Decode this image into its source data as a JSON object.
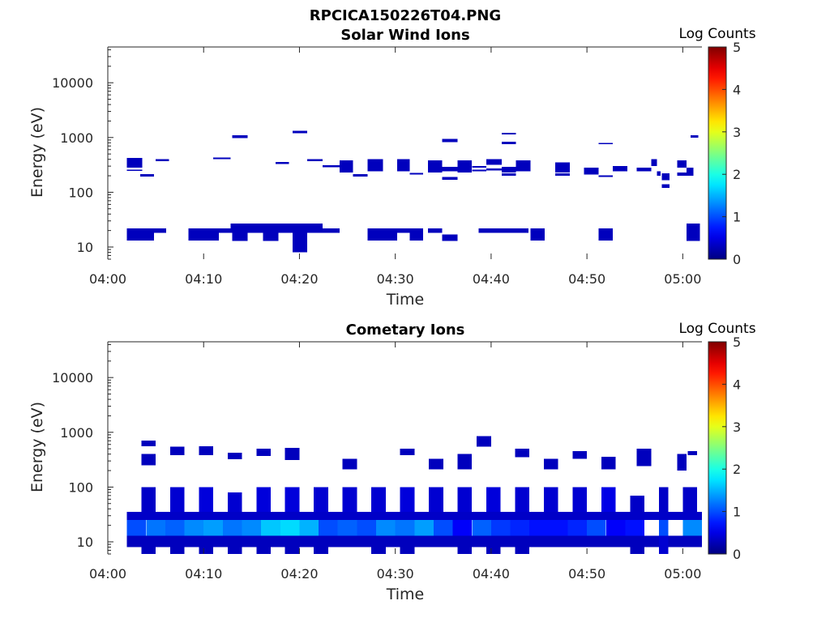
{
  "figure_title": "RPCICA150226T04.PNG",
  "colorbar": {
    "label": "Log Counts",
    "ticks": [
      "0",
      "1",
      "2",
      "3",
      "4",
      "5"
    ],
    "range": [
      0,
      5
    ],
    "colormap": "jet"
  },
  "chart_data": [
    {
      "type": "heatmap",
      "title": "Solar Wind Ions",
      "xlabel": "Time",
      "ylabel": "Energy (eV)",
      "x_ticks": [
        "04:00",
        "04:10",
        "04:20",
        "04:30",
        "04:40",
        "04:50",
        "05:00"
      ],
      "y_ticks": [
        "10",
        "100",
        "1000",
        "10000"
      ],
      "y_scale": "log",
      "ylim": [
        6,
        45000
      ],
      "xlim_minutes": [
        0,
        62
      ],
      "value_units": "log counts",
      "cells": [
        [
          2,
          3.6,
          13,
          22,
          0.3
        ],
        [
          2,
          3.6,
          280,
          420,
          0.3
        ],
        [
          2,
          3.6,
          245,
          260,
          0.3
        ],
        [
          3.4,
          4.8,
          13,
          22,
          0.3
        ],
        [
          3.4,
          4.8,
          195,
          215,
          0.3
        ],
        [
          4.8,
          6.1,
          18,
          22,
          0.3
        ],
        [
          5,
          6.4,
          370,
          400,
          0.3
        ],
        [
          8.4,
          11.6,
          13,
          22,
          0.3
        ],
        [
          11.6,
          12.8,
          18,
          22,
          0.3
        ],
        [
          11,
          12.8,
          400,
          430,
          0.3
        ],
        [
          12.8,
          13.6,
          18,
          27,
          0.3
        ],
        [
          13,
          14.6,
          13,
          27,
          0.3
        ],
        [
          13,
          14.6,
          980,
          1100,
          0.3
        ],
        [
          14.6,
          16.2,
          18,
          27,
          0.3
        ],
        [
          16.2,
          17.8,
          13,
          27,
          0.3
        ],
        [
          17.8,
          19.3,
          18,
          27,
          0.3
        ],
        [
          17.5,
          18.9,
          330,
          360,
          0.3
        ],
        [
          19.3,
          20.8,
          8,
          27,
          0.3
        ],
        [
          19.3,
          20.8,
          1200,
          1320,
          0.3
        ],
        [
          20.8,
          22.4,
          18,
          27,
          0.3
        ],
        [
          20.8,
          22.4,
          370,
          400,
          0.3
        ],
        [
          22.4,
          24.2,
          18,
          22,
          0.3
        ],
        [
          22.4,
          24.2,
          285,
          310,
          0.3
        ],
        [
          24.2,
          25.6,
          230,
          380,
          0.3
        ],
        [
          25.6,
          27.1,
          195,
          215,
          0.3
        ],
        [
          27.1,
          28.7,
          240,
          400,
          0.3
        ],
        [
          27.1,
          30.2,
          13,
          22,
          0.3
        ],
        [
          30.2,
          31.5,
          18,
          22,
          0.3
        ],
        [
          30.2,
          31.5,
          240,
          400,
          0.3
        ],
        [
          31.5,
          32.9,
          13,
          22,
          0.3
        ],
        [
          31.5,
          32.9,
          210,
          225,
          0.3
        ],
        [
          33.4,
          34.9,
          18,
          22,
          0.3
        ],
        [
          33.4,
          34.9,
          230,
          380,
          0.3
        ],
        [
          34.9,
          36.5,
          13,
          17,
          0.3
        ],
        [
          34.9,
          36.5,
          830,
          950,
          0.3
        ],
        [
          34.9,
          36.5,
          240,
          290,
          0.3
        ],
        [
          34.9,
          36.5,
          170,
          190,
          0.3
        ],
        [
          36.5,
          38,
          230,
          380,
          0.3
        ],
        [
          38,
          39.5,
          280,
          300,
          0.3
        ],
        [
          38,
          39.5,
          240,
          260,
          0.3
        ],
        [
          38.7,
          43.9,
          18,
          22,
          0.3
        ],
        [
          39.5,
          41.1,
          320,
          400,
          0.3
        ],
        [
          39.5,
          41.1,
          250,
          270,
          0.3
        ],
        [
          41.1,
          42.6,
          230,
          290,
          0.3
        ],
        [
          41.1,
          42.6,
          1130,
          1220,
          0.3
        ],
        [
          41.1,
          42.6,
          750,
          830,
          0.3
        ],
        [
          41.1,
          42.6,
          200,
          220,
          0.3
        ],
        [
          42.6,
          44.1,
          240,
          380,
          0.3
        ],
        [
          44.1,
          45.6,
          13,
          22,
          0.3
        ],
        [
          46.7,
          48.2,
          230,
          350,
          0.3
        ],
        [
          46.7,
          48.2,
          200,
          220,
          0.3
        ],
        [
          49.7,
          51.2,
          210,
          280,
          0.3
        ],
        [
          51.2,
          52.7,
          13,
          22,
          0.3
        ],
        [
          51.2,
          52.7,
          750,
          800,
          0.3
        ],
        [
          51.2,
          52.7,
          190,
          205,
          0.3
        ],
        [
          52.7,
          54.2,
          240,
          300,
          0.3
        ],
        [
          55.2,
          56.7,
          240,
          280,
          0.3
        ],
        [
          56.7,
          57.3,
          300,
          400,
          0.3
        ],
        [
          57.3,
          57.7,
          200,
          240,
          0.3
        ],
        [
          57.8,
          58.6,
          165,
          220,
          0.3
        ],
        [
          57.8,
          58.6,
          120,
          140,
          0.3
        ],
        [
          59.4,
          60.4,
          280,
          380,
          0.3
        ],
        [
          59.4,
          60.4,
          200,
          230,
          0.3
        ],
        [
          60.4,
          61.1,
          200,
          280,
          0.3
        ],
        [
          60.4,
          61.8,
          13,
          27,
          0.3
        ],
        [
          60.8,
          61.6,
          1000,
          1100,
          0.3
        ]
      ]
    },
    {
      "type": "heatmap",
      "title": "Cometary Ions",
      "xlabel": "Time",
      "ylabel": "Energy (eV)",
      "x_ticks": [
        "04:00",
        "04:10",
        "04:20",
        "04:30",
        "04:40",
        "04:50",
        "05:00"
      ],
      "y_ticks": [
        "10",
        "100",
        "1000",
        "10000"
      ],
      "y_scale": "log",
      "ylim": [
        6,
        45000
      ],
      "xlim_minutes": [
        0,
        62
      ],
      "value_units": "log counts",
      "cells": [
        [
          0,
          0,
          0,
          0,
          0
        ],
        [
          2,
          62,
          25,
          35,
          0.35
        ],
        [
          2,
          62,
          8,
          13,
          0.3
        ],
        [
          3.5,
          5,
          35,
          100,
          0.35
        ],
        [
          3.5,
          5,
          6,
          8,
          0.3
        ],
        [
          3.5,
          5,
          560,
          700,
          0.3
        ],
        [
          3.5,
          5,
          250,
          400,
          0.3
        ],
        [
          6.5,
          8,
          35,
          100,
          0.4
        ],
        [
          6.5,
          8,
          6,
          8,
          0.3
        ],
        [
          6.5,
          8,
          380,
          550,
          0.3
        ],
        [
          9.5,
          11,
          35,
          100,
          0.45
        ],
        [
          9.5,
          11,
          6,
          8,
          0.3
        ],
        [
          9.5,
          11,
          380,
          560,
          0.3
        ],
        [
          12.5,
          14,
          35,
          80,
          0.4
        ],
        [
          12.5,
          14,
          6,
          8,
          0.3
        ],
        [
          12.5,
          14,
          320,
          420,
          0.3
        ],
        [
          15.5,
          17,
          35,
          100,
          0.45
        ],
        [
          15.5,
          17,
          6,
          8,
          0.3
        ],
        [
          15.5,
          17,
          370,
          500,
          0.3
        ],
        [
          18.5,
          20,
          35,
          100,
          0.45
        ],
        [
          18.5,
          20,
          6,
          8,
          0.3
        ],
        [
          18.5,
          20,
          310,
          520,
          0.3
        ],
        [
          21.5,
          23,
          35,
          100,
          0.4
        ],
        [
          21.5,
          23,
          6,
          8,
          0.3
        ],
        [
          24.5,
          26,
          35,
          100,
          0.4
        ],
        [
          24.5,
          26,
          210,
          330,
          0.3
        ],
        [
          27.5,
          29,
          35,
          100,
          0.4
        ],
        [
          27.5,
          29,
          6,
          8,
          0.3
        ],
        [
          30.5,
          32,
          35,
          100,
          0.45
        ],
        [
          30.5,
          32,
          6,
          8,
          0.3
        ],
        [
          30.5,
          32,
          380,
          500,
          0.3
        ],
        [
          33.5,
          35,
          35,
          100,
          0.4
        ],
        [
          33.5,
          35,
          210,
          330,
          0.3
        ],
        [
          36.5,
          38,
          35,
          100,
          0.4
        ],
        [
          36.5,
          38,
          6,
          8,
          0.3
        ],
        [
          36.5,
          38,
          210,
          400,
          0.3
        ],
        [
          39.5,
          41,
          35,
          100,
          0.45
        ],
        [
          38.5,
          40,
          550,
          850,
          0.3
        ],
        [
          39.5,
          41,
          6,
          8,
          0.3
        ],
        [
          42.5,
          44,
          35,
          100,
          0.4
        ],
        [
          42.5,
          44,
          6,
          8,
          0.3
        ],
        [
          42.5,
          44,
          350,
          500,
          0.3
        ],
        [
          45.5,
          47,
          35,
          100,
          0.4
        ],
        [
          45.5,
          47,
          210,
          330,
          0.3
        ],
        [
          48.5,
          50,
          35,
          100,
          0.4
        ],
        [
          48.5,
          50,
          330,
          450,
          0.3
        ],
        [
          51.5,
          53,
          35,
          100,
          0.5
        ],
        [
          51.5,
          53,
          210,
          360,
          0.3
        ],
        [
          54.5,
          56,
          35,
          70,
          0.35
        ],
        [
          54.5,
          56,
          6,
          8,
          0.3
        ],
        [
          55.2,
          56.7,
          240,
          500,
          0.3
        ],
        [
          57.5,
          58.5,
          35,
          100,
          0.35
        ],
        [
          57.5,
          58.5,
          6,
          20,
          0.4
        ],
        [
          59.4,
          60.4,
          200,
          400,
          0.3
        ],
        [
          60,
          61.5,
          35,
          100,
          0.35
        ],
        [
          60.5,
          61.5,
          380,
          450,
          0.3
        ],
        [
          2,
          4,
          13,
          25,
          1.0
        ],
        [
          4,
          6,
          13,
          25,
          1.2
        ],
        [
          6,
          8,
          13,
          25,
          1.1
        ],
        [
          8,
          10,
          13,
          25,
          1.3
        ],
        [
          10,
          12,
          13,
          25,
          1.4
        ],
        [
          12,
          14,
          13,
          25,
          1.2
        ],
        [
          14,
          16,
          13,
          25,
          1.3
        ],
        [
          16,
          18,
          13,
          25,
          1.6
        ],
        [
          18,
          20,
          13,
          25,
          1.7
        ],
        [
          20,
          22,
          13,
          25,
          1.5
        ],
        [
          22,
          24,
          13,
          25,
          1.0
        ],
        [
          24,
          26,
          13,
          25,
          1.1
        ],
        [
          26,
          28,
          13,
          25,
          1.0
        ],
        [
          28,
          30,
          13,
          25,
          1.3
        ],
        [
          30,
          32,
          13,
          25,
          1.2
        ],
        [
          32,
          34,
          13,
          25,
          1.4
        ],
        [
          34,
          36,
          13,
          25,
          1.0
        ],
        [
          36,
          38,
          13,
          25,
          0.6
        ],
        [
          38,
          40,
          13,
          25,
          1.1
        ],
        [
          40,
          42,
          13,
          25,
          0.9
        ],
        [
          42,
          44,
          13,
          25,
          0.8
        ],
        [
          44,
          46,
          13,
          25,
          0.7
        ],
        [
          46,
          48,
          13,
          25,
          0.7
        ],
        [
          48,
          50,
          13,
          25,
          0.8
        ],
        [
          50,
          52,
          13,
          25,
          1.0
        ],
        [
          52,
          54,
          13,
          25,
          0.6
        ],
        [
          54,
          56,
          13,
          25,
          0.7
        ],
        [
          57.5,
          58.5,
          13,
          25,
          1.0
        ],
        [
          60,
          62,
          13,
          25,
          1.3
        ]
      ]
    }
  ]
}
